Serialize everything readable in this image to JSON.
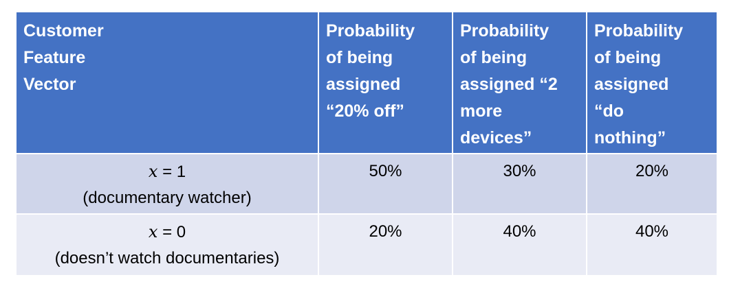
{
  "table": {
    "headers": [
      "Customer\nFeature\nVector",
      "Probability\nof being\nassigned\n“20% off”",
      "Probability\nof being\nassigned “2\nmore\ndevices”",
      "Probability\nof being\nassigned\n“do\nnothing”"
    ],
    "rows": [
      {
        "x_var": "x",
        "x_value": " = 1",
        "description": "(documentary watcher)",
        "values": [
          "50%",
          "30%",
          "20%"
        ]
      },
      {
        "x_var": "x",
        "x_value": " = 0",
        "description": "(doesn’t watch documentaries)",
        "values": [
          "20%",
          "40%",
          "40%"
        ]
      }
    ]
  },
  "colors": {
    "header_bg": "#4472c4",
    "row_odd_bg": "#cfd5ea",
    "row_even_bg": "#e9ebf5",
    "header_text": "#ffffff"
  }
}
